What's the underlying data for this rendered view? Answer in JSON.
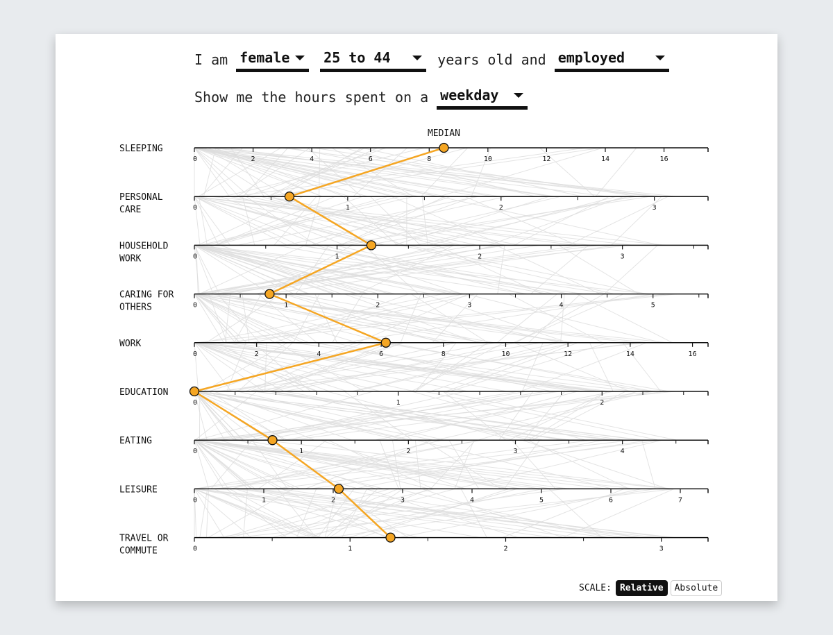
{
  "filters": {
    "prefix": "I am",
    "gender": "female",
    "age": "25 to 44",
    "age_suffix": "years old and",
    "employment": "employed",
    "show_text": "Show me the hours spent on a",
    "day": "weekday"
  },
  "scale": {
    "label": "SCALE:",
    "relative": "Relative",
    "absolute": "Absolute",
    "selected": "Relative"
  },
  "colors": {
    "median": "#f5a623",
    "median_stroke": "#e8940f",
    "background_lines": "#dddddd",
    "axis": "#111111"
  },
  "chart_data": {
    "type": "parallel-coordinates",
    "median_label": "MEDIAN",
    "axes": [
      {
        "label": [
          "SLEEPING"
        ],
        "max": 17.5,
        "ticks": [
          0,
          2,
          4,
          6,
          8,
          10,
          12,
          14,
          16
        ],
        "minor_ticks": [],
        "median": 8.5
      },
      {
        "label": [
          "PERSONAL",
          "CARE"
        ],
        "max": 3.35,
        "ticks": [
          0,
          1,
          2,
          3
        ],
        "minor_ticks": [
          0.5,
          1.5,
          2.5
        ],
        "median": 0.62
      },
      {
        "label": [
          "HOUSEHOLD",
          "WORK"
        ],
        "max": 3.6,
        "ticks": [
          0,
          1,
          2,
          3
        ],
        "minor_ticks": [
          0.5,
          1.5,
          2.5,
          3.5
        ],
        "median": 1.24
      },
      {
        "label": [
          "CARING FOR",
          "OTHERS"
        ],
        "max": 5.6,
        "ticks": [
          0,
          1,
          2,
          3,
          4,
          5
        ],
        "minor_ticks": [
          0.5,
          1.5,
          2.5,
          3.5,
          4.5,
          5.5
        ],
        "median": 0.82
      },
      {
        "label": [
          "WORK"
        ],
        "max": 16.5,
        "ticks": [
          0,
          2,
          4,
          6,
          8,
          10,
          12,
          14,
          16
        ],
        "minor_ticks": [],
        "median": 6.15
      },
      {
        "label": [
          "EDUCATION"
        ],
        "max": 2.52,
        "ticks": [
          0,
          1,
          2
        ],
        "minor_ticks": [
          0.2,
          0.4,
          0.6,
          0.8,
          1.2,
          1.4,
          1.6,
          1.8,
          2.2,
          2.4
        ],
        "median": 0
      },
      {
        "label": [
          "EATING"
        ],
        "max": 4.8,
        "ticks": [
          0,
          1,
          2,
          3,
          4
        ],
        "minor_ticks": [
          0.5,
          1.5,
          2.5,
          3.5,
          4.5
        ],
        "median": 0.73
      },
      {
        "label": [
          "LEISURE"
        ],
        "max": 7.4,
        "ticks": [
          0,
          1,
          2,
          3,
          4,
          5,
          6,
          7
        ],
        "minor_ticks": [],
        "median": 2.08
      },
      {
        "label": [
          "TRAVEL OR",
          "COMMUTE"
        ],
        "max": 3.3,
        "ticks": [
          0,
          1,
          2,
          3
        ],
        "minor_ticks": [
          0.5,
          1.5,
          2.5
        ],
        "median": 1.26
      }
    ]
  }
}
